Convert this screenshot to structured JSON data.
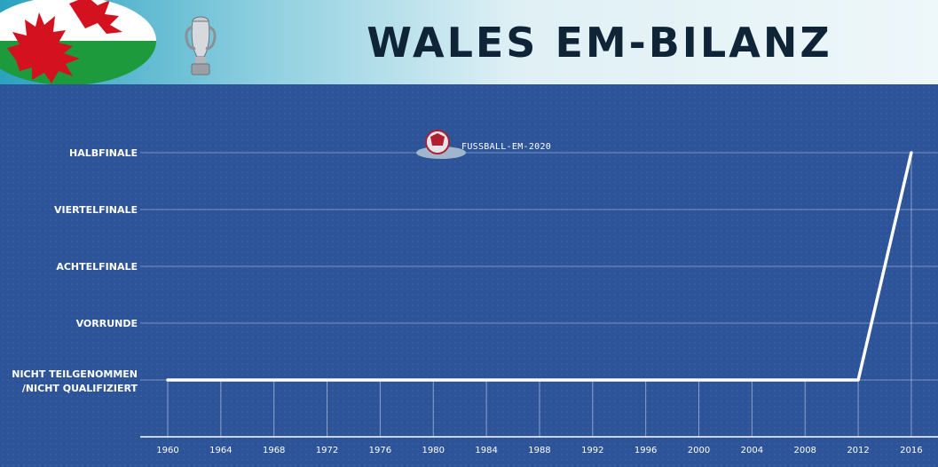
{
  "header": {
    "title": "WALES EM-BILANZ"
  },
  "watermark": {
    "text": "FUSSBALL-EM-2020"
  },
  "colors": {
    "background": "#2d5499",
    "line": "#ffffff",
    "title": "#0f2437"
  },
  "chart_data": {
    "type": "line",
    "title": "WALES EM-BILANZ",
    "x": [
      "1960",
      "1964",
      "1968",
      "1972",
      "1976",
      "1980",
      "1984",
      "1988",
      "1992",
      "1996",
      "2000",
      "2004",
      "2008",
      "2012",
      "2016"
    ],
    "y_categories": [
      "Nicht teilgenommen\n/nicht qualifiziert",
      "Vorrunde",
      "Achtelfinale",
      "Viertelfinale",
      "Halbfinale"
    ],
    "series": [
      {
        "values": [
          0,
          0,
          0,
          0,
          0,
          0,
          0,
          0,
          0,
          0,
          0,
          0,
          0,
          0,
          4
        ]
      }
    ],
    "grid": true
  }
}
